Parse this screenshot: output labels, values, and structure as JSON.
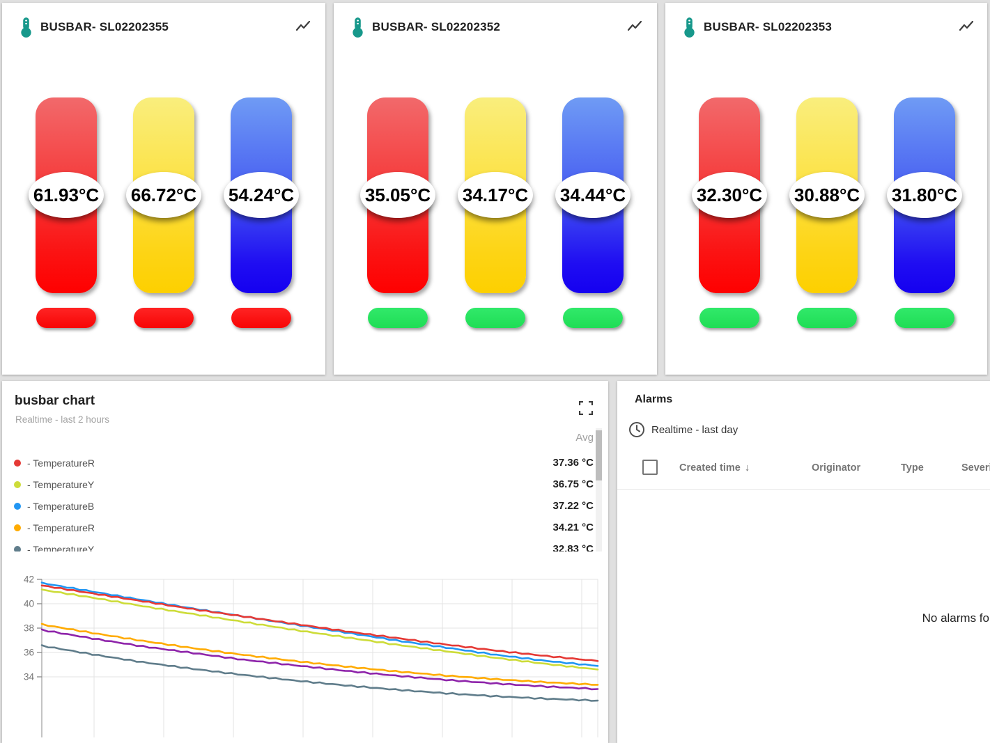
{
  "palette": {
    "page_bg": "#e0e0e0",
    "card_bg": "#ffffff",
    "thermometer_icon": "#17988b",
    "status_red": "#f70505",
    "status_green": "#25e35f",
    "gauge_red": "#ff0000",
    "gauge_yellow": "#fdd000",
    "gauge_blue": "#1500f0"
  },
  "gauge_cards": [
    {
      "title": "BUSBAR- SL02202355",
      "status": "red",
      "gauges": [
        {
          "color": "red",
          "value": "61.93°C"
        },
        {
          "color": "yellow",
          "value": "66.72°C"
        },
        {
          "color": "blue",
          "value": "54.24°C"
        }
      ]
    },
    {
      "title": "BUSBAR- SL02202352",
      "status": "green",
      "gauges": [
        {
          "color": "red",
          "value": "35.05°C"
        },
        {
          "color": "yellow",
          "value": "34.17°C"
        },
        {
          "color": "blue",
          "value": "34.44°C"
        }
      ]
    },
    {
      "title": "BUSBAR- SL02202353",
      "status": "green",
      "gauges": [
        {
          "color": "red",
          "value": "32.30°C"
        },
        {
          "color": "yellow",
          "value": "30.88°C"
        },
        {
          "color": "blue",
          "value": "31.80°C"
        }
      ]
    }
  ],
  "chart_card": {
    "title": "busbar chart",
    "subtitle": "Realtime - last 2 hours",
    "avg_header": "Avg",
    "legend": [
      {
        "color": "#e53935",
        "label": "- TemperatureR",
        "avg": "37.36 °C"
      },
      {
        "color": "#cddc39",
        "label": "- TemperatureY",
        "avg": "36.75 °C"
      },
      {
        "color": "#2196f3",
        "label": "- TemperatureB",
        "avg": "37.22 °C"
      },
      {
        "color": "#ffab00",
        "label": "- TemperatureR",
        "avg": "34.21 °C"
      },
      {
        "color": "#607d8b",
        "label": "- TemperatureY",
        "avg": "32.83 °C"
      }
    ]
  },
  "chart_data": {
    "type": "line",
    "title": "busbar chart",
    "timewindow": "Realtime - last 2 hours",
    "grid": true,
    "legend_position": "top",
    "y_ticks": [
      42,
      40,
      38,
      36,
      34
    ],
    "ylim_visible": [
      34,
      42
    ],
    "series": [
      {
        "name": "TemperatureR",
        "color": "#e53935",
        "avg": "37.36 °C",
        "values": [
          41.5,
          40.85,
          40.2,
          39.55,
          38.95,
          38.35,
          37.75,
          37.2,
          36.65,
          36.15,
          35.7,
          35.3
        ]
      },
      {
        "name": "TemperatureY",
        "color": "#cddc39",
        "avg": "36.75 °C",
        "values": [
          41.15,
          40.5,
          39.8,
          39.15,
          38.5,
          37.85,
          37.25,
          36.65,
          36.1,
          35.55,
          35.05,
          34.6
        ]
      },
      {
        "name": "TemperatureB",
        "color": "#2196f3",
        "avg": "37.22 °C",
        "values": [
          41.7,
          41.0,
          40.3,
          39.6,
          38.95,
          38.3,
          37.65,
          37.0,
          36.4,
          35.8,
          35.3,
          34.9
        ]
      },
      {
        "name": "TemperatureR",
        "color": "#ffab00",
        "avg": "34.21 °C",
        "values": [
          38.3,
          37.6,
          36.95,
          36.35,
          35.8,
          35.3,
          34.85,
          34.45,
          34.1,
          33.8,
          33.55,
          33.35
        ]
      },
      {
        "name": "TemperatureY",
        "color": "#607d8b",
        "avg": "32.83 °C",
        "values": [
          36.55,
          35.85,
          35.2,
          34.65,
          34.15,
          33.7,
          33.3,
          32.95,
          32.65,
          32.4,
          32.2,
          32.05
        ]
      },
      {
        "name": "",
        "color": "#8e24aa",
        "avg": "",
        "values": [
          37.85,
          37.15,
          36.5,
          35.95,
          35.4,
          34.95,
          34.5,
          34.1,
          33.75,
          33.45,
          33.2,
          33.0
        ]
      }
    ]
  },
  "alarms_card": {
    "title": "Alarms",
    "timewindow": "Realtime - last day",
    "columns": [
      "Created time",
      "Originator",
      "Type",
      "Severity"
    ],
    "sort_column": "Created time",
    "sort_arrow": "↓",
    "empty_text": "No alarms found"
  }
}
